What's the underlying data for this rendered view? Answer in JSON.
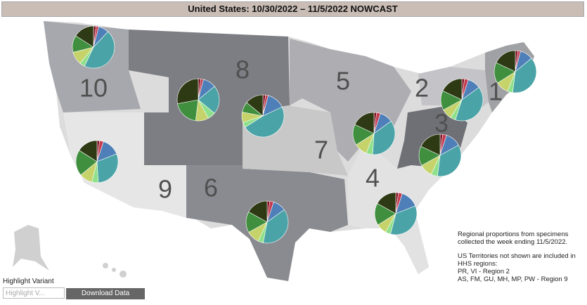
{
  "header": {
    "title": "United States: 10/30/2022 – 11/5/2022 NOWCAST"
  },
  "regions": [
    "10",
    "8",
    "5",
    "2",
    "1",
    "3",
    "7",
    "4",
    "9",
    "6"
  ],
  "slice_colors": [
    "#7a1020",
    "#c43a4e",
    "#4f7fb8",
    "#4aa3a6",
    "#8fe08a",
    "#c5d36a",
    "#3f8f3f",
    "#2e3a14"
  ],
  "pies": [
    {
      "values": [
        2,
        2,
        8,
        45,
        4,
        10,
        13,
        16
      ]
    },
    {
      "values": [
        2,
        2,
        10,
        22,
        6,
        10,
        20,
        28
      ]
    },
    {
      "values": [
        2,
        2,
        14,
        48,
        4,
        8,
        8,
        14
      ]
    },
    {
      "values": [
        2,
        3,
        10,
        40,
        4,
        8,
        15,
        18
      ]
    },
    {
      "values": [
        2,
        2,
        10,
        38,
        4,
        10,
        16,
        18
      ]
    },
    {
      "values": [
        2,
        3,
        12,
        35,
        5,
        10,
        15,
        18
      ]
    },
    {
      "values": [
        2,
        3,
        10,
        36,
        5,
        10,
        16,
        18
      ]
    },
    {
      "values": [
        2,
        3,
        14,
        35,
        4,
        8,
        17,
        17
      ]
    },
    {
      "values": [
        2,
        3,
        14,
        30,
        5,
        10,
        20,
        16
      ]
    },
    {
      "values": [
        2,
        3,
        10,
        38,
        4,
        10,
        16,
        17
      ]
    }
  ],
  "note": {
    "line1": "Regional proportions from specimens collected the week ending 11/5/2022.",
    "line2": "US Territories not shown are included in HHS regions:",
    "line3": "PR, VI - Region 2",
    "line4": "AS, FM, GU, MH, MP, PW - Region 9"
  },
  "highlight_label": "Highlight Variant",
  "search_placeholder": "Highlight V...",
  "download_button": "Download Data"
}
